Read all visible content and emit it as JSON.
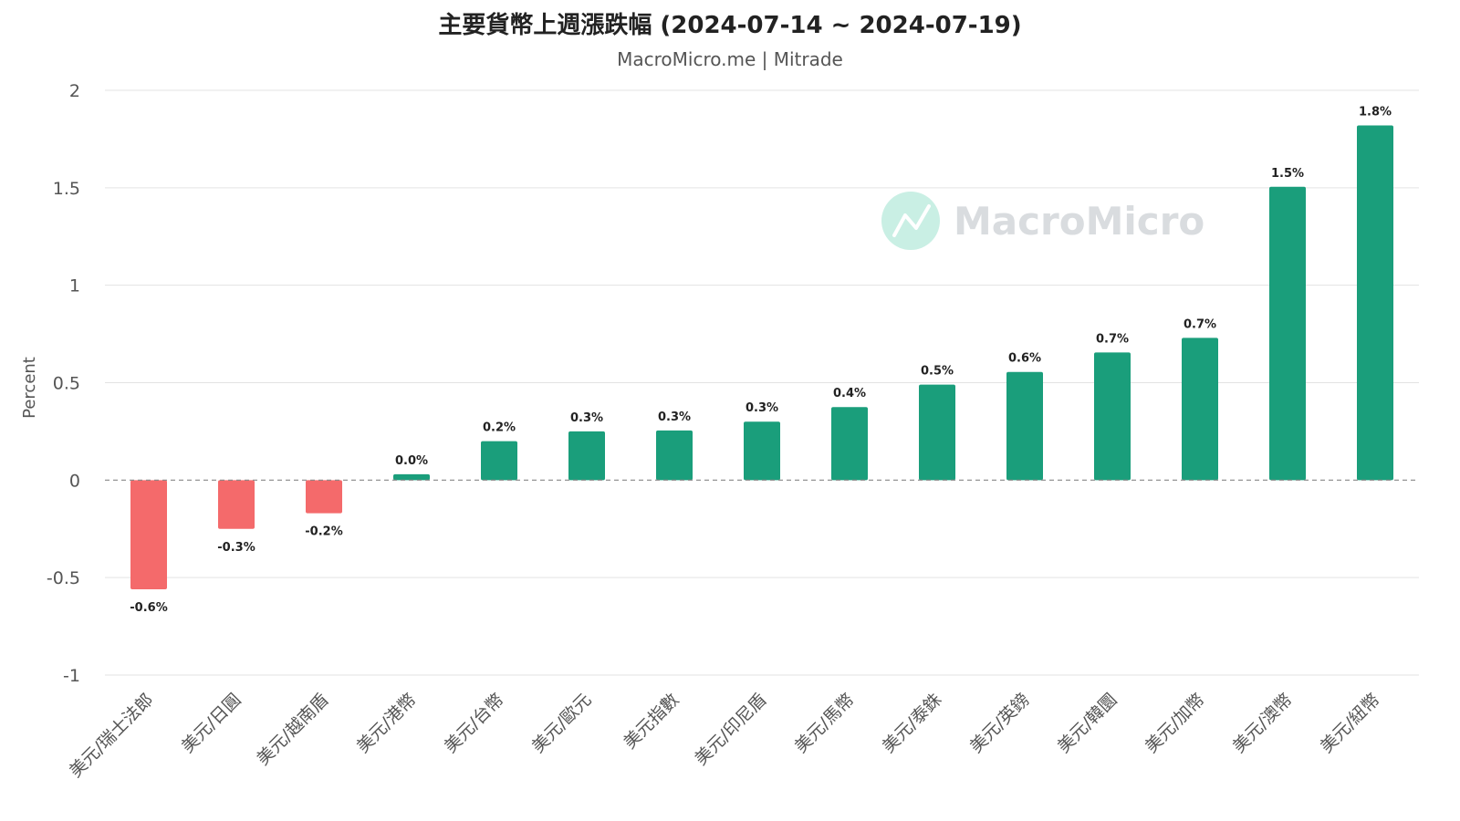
{
  "chart_data": {
    "type": "bar",
    "title": "主要貨幣上週漲跌幅 (2024-07-14 ~ 2024-07-19)",
    "subtitle": "MacroMicro.me | Mitrade",
    "ylabel": "Percent",
    "ylim": [
      -1,
      2
    ],
    "yticks": [
      2,
      1.5,
      1,
      0.5,
      0,
      -0.5,
      -1
    ],
    "grid": true,
    "categories": [
      "美元/瑞士法郎",
      "美元/日圓",
      "美元/越南盾",
      "美元/港幣",
      "美元/台幣",
      "美元/歐元",
      "美元指數",
      "美元/印尼盾",
      "美元/馬幣",
      "美元/泰銖",
      "美元/英鎊",
      "美元/韓圜",
      "美元/加幣",
      "美元/澳幣",
      "美元/紐幣"
    ],
    "values": [
      -0.56,
      -0.25,
      -0.17,
      0.03,
      0.2,
      0.25,
      0.255,
      0.3,
      0.375,
      0.49,
      0.555,
      0.655,
      0.73,
      1.505,
      1.82
    ],
    "data_labels": [
      "-0.6%",
      "-0.3%",
      "-0.2%",
      "0.0%",
      "0.2%",
      "0.3%",
      "0.3%",
      "0.3%",
      "0.4%",
      "0.5%",
      "0.6%",
      "0.7%",
      "0.7%",
      "1.5%",
      "1.8%"
    ],
    "colors": {
      "positive": "#1a9e7b",
      "negative": "#f46a6b"
    }
  },
  "watermark": {
    "text": "MacroMicro",
    "color": "#c9efe4"
  }
}
